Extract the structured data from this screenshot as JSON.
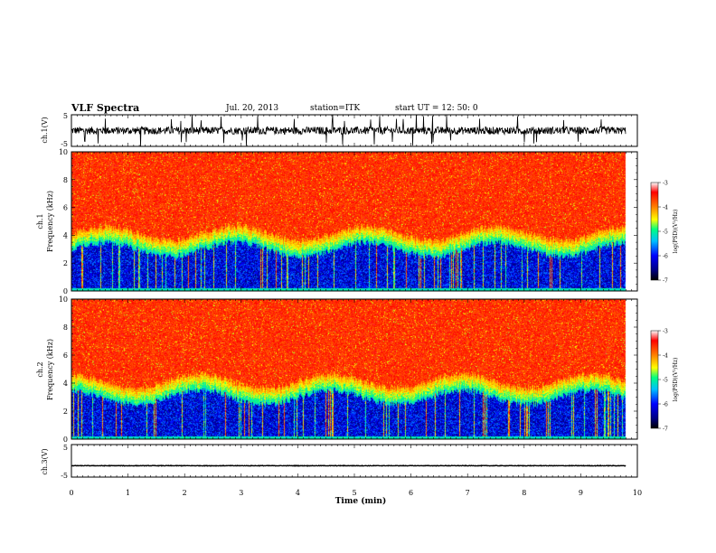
{
  "header": {
    "title": "VLF Spectra",
    "date": "Jul. 20, 2013",
    "station": "station=ITK",
    "start": "start UT = 12: 50: 0"
  },
  "chart_data": {
    "type": "heatmap",
    "xlabel": "Time (min)",
    "xlim": [
      0,
      10
    ],
    "x_ticks": [
      "0",
      "1",
      "2",
      "3",
      "4",
      "5",
      "6",
      "7",
      "8",
      "9",
      "10"
    ],
    "data_extent_min": 9.8,
    "panels": [
      {
        "id": "ch1-waveform",
        "type": "line",
        "ylabel": "ch.1(V)",
        "ylim": [
          -5,
          5
        ],
        "y_ticks": [
          "5",
          "-5"
        ],
        "baseline": 0,
        "noise_range": [
          -1.5,
          1.5
        ]
      },
      {
        "id": "ch1-spectrogram",
        "type": "heatmap",
        "ylabel_line1": "ch.1",
        "ylabel_line2": "Frequency (kHz)",
        "ylim": [
          0,
          10
        ],
        "y_ticks": [
          "0",
          "2",
          "4",
          "6",
          "8",
          "10"
        ],
        "colorbar": {
          "label": "log(PSD)(V²/Hz)",
          "range": [
            -7,
            -3
          ],
          "ticks": [
            "-3",
            "-4",
            "-5",
            "-6",
            "-7"
          ]
        }
      },
      {
        "id": "ch2-spectrogram",
        "type": "heatmap",
        "ylabel_line1": "ch.2",
        "ylabel_line2": "Frequency (kHz)",
        "ylim": [
          0,
          10
        ],
        "y_ticks": [
          "0",
          "2",
          "4",
          "6",
          "8",
          "10"
        ],
        "colorbar": {
          "label": "log(PSD)(V²/Hz)",
          "range": [
            -7,
            -3
          ],
          "ticks": [
            "-3",
            "-4",
            "-5",
            "-6",
            "-7"
          ]
        }
      },
      {
        "id": "ch3-waveform",
        "type": "line",
        "ylabel": "ch.3(V)",
        "ylim": [
          -5,
          5
        ],
        "y_ticks": [
          "5",
          "-5"
        ],
        "baseline": -1.5
      }
    ]
  }
}
